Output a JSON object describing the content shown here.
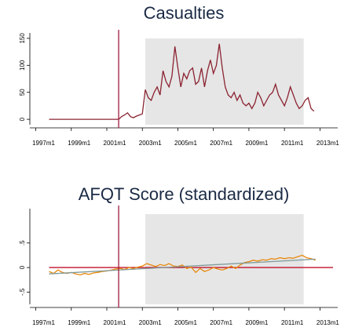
{
  "chart_data": [
    {
      "type": "line",
      "title": "Casualties",
      "x": [
        "1997m10",
        "1998m1",
        "1998m4",
        "1998m7",
        "1998m10",
        "1999m1",
        "1999m4",
        "1999m7",
        "1999m10",
        "2000m1",
        "2000m4",
        "2000m7",
        "2000m10",
        "2001m1",
        "2001m4",
        "2001m7",
        "2001m9",
        "2001m11",
        "2002m1",
        "2002m3",
        "2002m5",
        "2002m7",
        "2002m9",
        "2002m11",
        "2003m1",
        "2003m3",
        "2003m5",
        "2003m7",
        "2003m9",
        "2003m11",
        "2004m1",
        "2004m3",
        "2004m5",
        "2004m7",
        "2004m9",
        "2004m11",
        "2005m1",
        "2005m3",
        "2005m5",
        "2005m7",
        "2005m9",
        "2005m11",
        "2006m1",
        "2006m3",
        "2006m5",
        "2006m7",
        "2006m9",
        "2006m11",
        "2007m1",
        "2007m3",
        "2007m5",
        "2007m7",
        "2007m9",
        "2007m11",
        "2008m1",
        "2008m3",
        "2008m5",
        "2008m7",
        "2008m9",
        "2008m11",
        "2009m1",
        "2009m3",
        "2009m5",
        "2009m7",
        "2009m9",
        "2009m11",
        "2010m1",
        "2010m3",
        "2010m5",
        "2010m7",
        "2010m9",
        "2010m11",
        "2011m1",
        "2011m3",
        "2011m5",
        "2011m7",
        "2011m9",
        "2011m11",
        "2012m1",
        "2012m3",
        "2012m5",
        "2012m7",
        "2012m9"
      ],
      "series": [
        {
          "color": "#8b2331",
          "values": [
            0,
            0,
            0,
            0,
            0,
            0,
            0,
            0,
            0,
            0,
            0,
            0,
            0,
            0,
            0,
            0,
            0,
            5,
            8,
            12,
            5,
            3,
            6,
            8,
            10,
            55,
            40,
            35,
            50,
            60,
            45,
            90,
            70,
            60,
            80,
            135,
            95,
            60,
            85,
            75,
            90,
            95,
            65,
            70,
            95,
            60,
            90,
            110,
            85,
            100,
            140,
            95,
            60,
            45,
            40,
            50,
            35,
            45,
            30,
            25,
            30,
            20,
            30,
            50,
            40,
            25,
            35,
            45,
            50,
            65,
            45,
            35,
            25,
            40,
            60,
            45,
            30,
            20,
            25,
            35,
            40,
            20,
            15
          ]
        }
      ],
      "xlim": [
        "1996m9",
        "2014m1"
      ],
      "ylim": [
        -10,
        160
      ],
      "xticks": [
        "1997m1",
        "1999m1",
        "2001m1",
        "2003m1",
        "2005m1",
        "2007m1",
        "2009m1",
        "2011m1",
        "2013m1"
      ],
      "yticks": [
        0,
        50,
        100,
        150
      ],
      "xline": "2001m9",
      "xline_color": "#a01c40",
      "shade": [
        "2003m3",
        "2012m2"
      ],
      "shade_color": "#e6e6e6"
    },
    {
      "type": "line",
      "title": "AFQT Score (standardized)",
      "x": [
        "1997m10",
        "1998m1",
        "1998m4",
        "1998m7",
        "1998m10",
        "1999m1",
        "1999m4",
        "1999m7",
        "1999m10",
        "2000m1",
        "2000m4",
        "2000m7",
        "2000m10",
        "2001m1",
        "2001m4",
        "2001m7",
        "2001m10",
        "2002m1",
        "2002m4",
        "2002m7",
        "2002m10",
        "2003m1",
        "2003m4",
        "2003m7",
        "2003m10",
        "2004m1",
        "2004m4",
        "2004m7",
        "2004m10",
        "2005m1",
        "2005m4",
        "2005m7",
        "2005m10",
        "2006m1",
        "2006m4",
        "2006m7",
        "2006m10",
        "2007m1",
        "2007m4",
        "2007m7",
        "2007m10",
        "2008m1",
        "2008m4",
        "2008m7",
        "2008m10",
        "2009m1",
        "2009m4",
        "2009m7",
        "2009m10",
        "2010m1",
        "2010m4",
        "2010m7",
        "2010m10",
        "2011m1",
        "2011m4",
        "2011m7",
        "2011m10",
        "2012m1",
        "2012m4",
        "2012m7",
        "2012m10"
      ],
      "series": [
        {
          "color": "#e8890c",
          "values": [
            -0.08,
            -0.12,
            -0.05,
            -0.1,
            -0.12,
            -0.1,
            -0.13,
            -0.15,
            -0.12,
            -0.14,
            -0.11,
            -0.1,
            -0.08,
            -0.07,
            -0.05,
            -0.03,
            -0.02,
            -0.04,
            0,
            -0.02,
            0.01,
            0.03,
            0.08,
            0.05,
            0.02,
            0.06,
            0.04,
            0.08,
            0.03,
            0.02,
            0.05,
            -0.02,
            0.01,
            -0.1,
            -0.02,
            -0.08,
            -0.05,
            0,
            -0.03,
            -0.05,
            -0.02,
            0.03,
            -0.02,
            0.05,
            0.1,
            0.12,
            0.15,
            0.13,
            0.16,
            0.15,
            0.18,
            0.17,
            0.2,
            0.18,
            0.2,
            0.19,
            0.22,
            0.25,
            0.2,
            0.18,
            0.15
          ]
        },
        {
          "color": "#7f9a9a",
          "x": [
            "1997m10",
            "2012m10"
          ],
          "values": [
            -0.13,
            0.17
          ]
        }
      ],
      "xlim": [
        "1996m9",
        "2014m1"
      ],
      "ylim": [
        -0.75,
        1.2
      ],
      "xticks": [
        "1997m1",
        "1999m1",
        "2001m1",
        "2003m1",
        "2005m1",
        "2007m1",
        "2009m1",
        "2011m1",
        "2013m1"
      ],
      "yticks": [
        {
          "value": -0.5,
          "label": "-.5"
        },
        0,
        {
          "value": 0.5,
          "label": ".5"
        }
      ],
      "xline": "2001m9",
      "xline_color": "#a01c40",
      "yline": 0,
      "yline_color": "#c0102a",
      "shade": [
        "2003m3",
        "2012m2"
      ],
      "shade_color": "#e6e6e6"
    }
  ]
}
